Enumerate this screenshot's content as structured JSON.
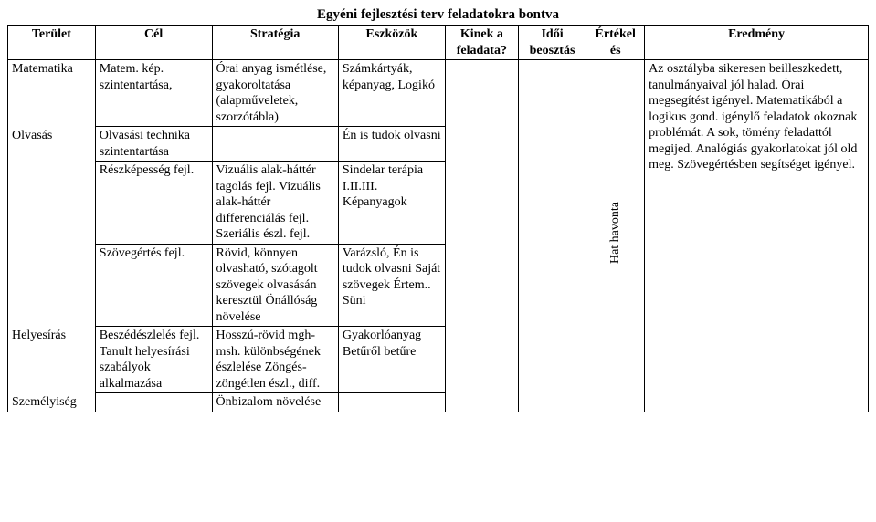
{
  "title": "Egyéni fejlesztési terv feladatokra bontva",
  "headers": {
    "c1": "Terület",
    "c2": "Cél",
    "c3": "Stratégia",
    "c4": "Eszközök",
    "c5": "Kinek a feladata?",
    "c6": "Idői beosztás",
    "c7": "Értékel és",
    "c8": "Eredmény"
  },
  "rotated": "Hat havonta",
  "result_text": "Az osztályba sikeresen beilleszkedett, tanulmányaival jól halad. Órai megsegítést igényel. Matematikából a logikus gond. igénylő feladatok okoznak problémát. A sok, tömény feladattól megijed. Analógiás gyakorlatokat jól old meg. Szövegértésben segítséget igényel.",
  "rows": [
    {
      "terulet": "Matematika",
      "cel": "Matem. kép. szintentartása,",
      "strat": "Órai anyag ismétlése, gyakoroltatása (alapműveletek, szorzótábla)",
      "eszk": "Számkártyák, képanyag, Logikó"
    },
    {
      "terulet": "Olvasás",
      "cel": "Olvasási technika szintentartása",
      "strat": "",
      "eszk": "Én is tudok olvasni"
    },
    {
      "terulet": "",
      "cel": "Részképesség fejl.",
      "strat": "Vizuális alak-háttér tagolás fejl. Vizuális alak-háttér differenciálás fejl. Szeriális észl. fejl.",
      "eszk": "Sindelar terápia I.II.III. Képanyagok"
    },
    {
      "terulet": "",
      "cel": "Szövegértés fejl.",
      "strat": "Rövid, könnyen olvasható, szótagolt szövegek olvasásán keresztül Önállóság növelése",
      "eszk": "Varázsló, Én is tudok olvasni Saját szövegek Értem.. Süni"
    },
    {
      "terulet": "Helyesírás",
      "cel": "Beszédészlelés fejl. Tanult helyesírási szabályok alkalmazása",
      "strat": "Hosszú-rövid mgh-msh. különbségének észlelése Zöngés-zöngétlen észl., diff.",
      "eszk": "Gyakorlóanyag Betűről betűre"
    },
    {
      "terulet": "Személyiség",
      "cel": "",
      "strat": "Önbizalom növelése",
      "eszk": ""
    }
  ]
}
